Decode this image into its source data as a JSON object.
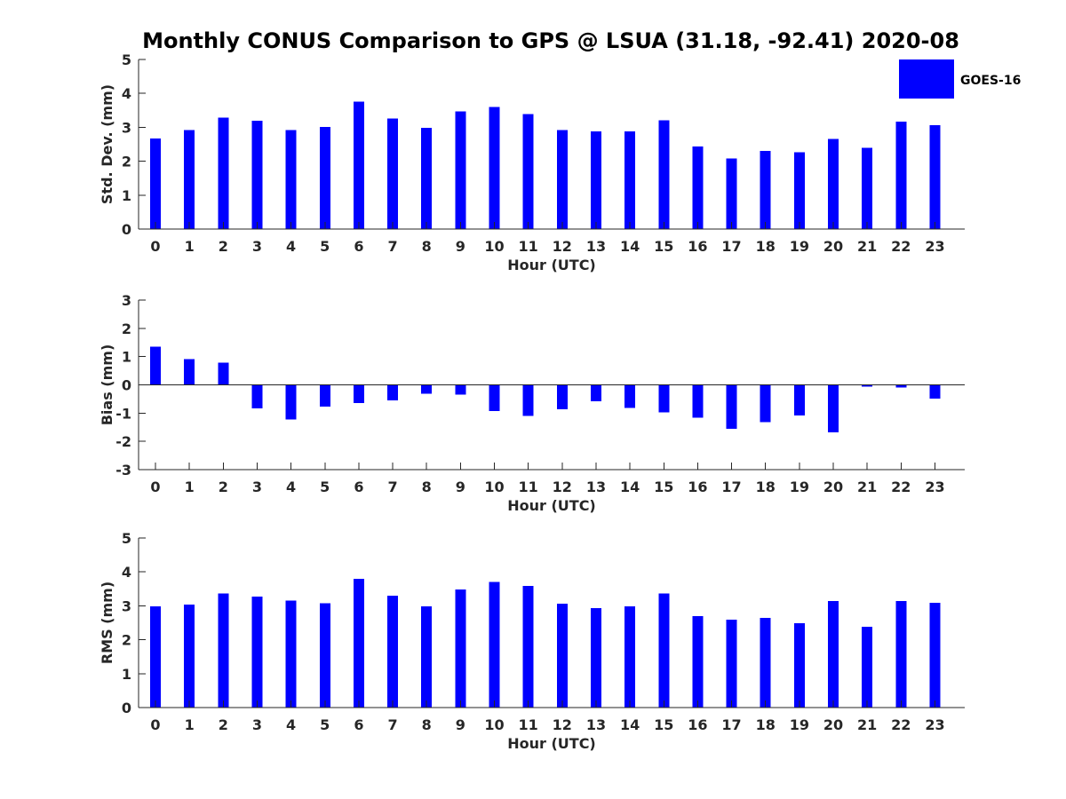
{
  "title": "Monthly CONUS Comparison to GPS @ LSUA (31.18, -92.41) 2020-08",
  "legend": {
    "label": "GOES-16",
    "color": "#0000ff",
    "placement": "top-right"
  },
  "chart_data": [
    {
      "type": "bar",
      "name": "std-dev",
      "categories": [
        "0",
        "1",
        "2",
        "3",
        "4",
        "5",
        "6",
        "7",
        "8",
        "9",
        "10",
        "11",
        "12",
        "13",
        "14",
        "15",
        "16",
        "17",
        "18",
        "19",
        "20",
        "21",
        "22",
        "23"
      ],
      "series": [
        {
          "name": "GOES-16",
          "values": [
            2.67,
            2.92,
            3.29,
            3.19,
            2.92,
            3.01,
            3.76,
            3.26,
            2.98,
            3.47,
            3.6,
            3.39,
            2.92,
            2.88,
            2.88,
            3.21,
            2.43,
            2.08,
            2.3,
            2.27,
            2.66,
            2.4,
            3.17,
            3.06
          ]
        }
      ],
      "xlabel": "Hour (UTC)",
      "ylabel": "Std. Dev. (mm)",
      "ylim": [
        0,
        5
      ],
      "yticks": [
        "0",
        "1",
        "2",
        "3",
        "4",
        "5"
      ]
    },
    {
      "type": "bar",
      "name": "bias",
      "categories": [
        "0",
        "1",
        "2",
        "3",
        "4",
        "5",
        "6",
        "7",
        "8",
        "9",
        "10",
        "11",
        "12",
        "13",
        "14",
        "15",
        "16",
        "17",
        "18",
        "19",
        "20",
        "21",
        "22",
        "23"
      ],
      "series": [
        {
          "name": "GOES-16",
          "values": [
            1.35,
            0.91,
            0.78,
            -0.83,
            -1.22,
            -0.77,
            -0.64,
            -0.55,
            -0.31,
            -0.35,
            -0.92,
            -1.1,
            -0.86,
            -0.58,
            -0.81,
            -0.97,
            -1.17,
            -1.56,
            -1.32,
            -1.08,
            -1.68,
            -0.07,
            -0.1,
            -0.48
          ]
        }
      ],
      "xlabel": "Hour (UTC)",
      "ylabel": "Bias (mm)",
      "ylim": [
        -3,
        3
      ],
      "yticks": [
        "-3",
        "-2",
        "-1",
        "0",
        "1",
        "2",
        "3"
      ]
    },
    {
      "type": "bar",
      "name": "rms",
      "categories": [
        "0",
        "1",
        "2",
        "3",
        "4",
        "5",
        "6",
        "7",
        "8",
        "9",
        "10",
        "11",
        "12",
        "13",
        "14",
        "15",
        "16",
        "17",
        "18",
        "19",
        "20",
        "21",
        "22",
        "23"
      ],
      "series": [
        {
          "name": "GOES-16",
          "values": [
            2.98,
            3.04,
            3.37,
            3.27,
            3.16,
            3.08,
            3.8,
            3.3,
            2.98,
            3.48,
            3.71,
            3.59,
            3.06,
            2.93,
            2.98,
            3.37,
            2.7,
            2.59,
            2.65,
            2.49,
            3.14,
            2.38,
            3.14,
            3.09
          ]
        }
      ],
      "xlabel": "Hour (UTC)",
      "ylabel": "RMS (mm)",
      "ylim": [
        0,
        5
      ],
      "yticks": [
        "0",
        "1",
        "2",
        "3",
        "4",
        "5"
      ]
    }
  ]
}
